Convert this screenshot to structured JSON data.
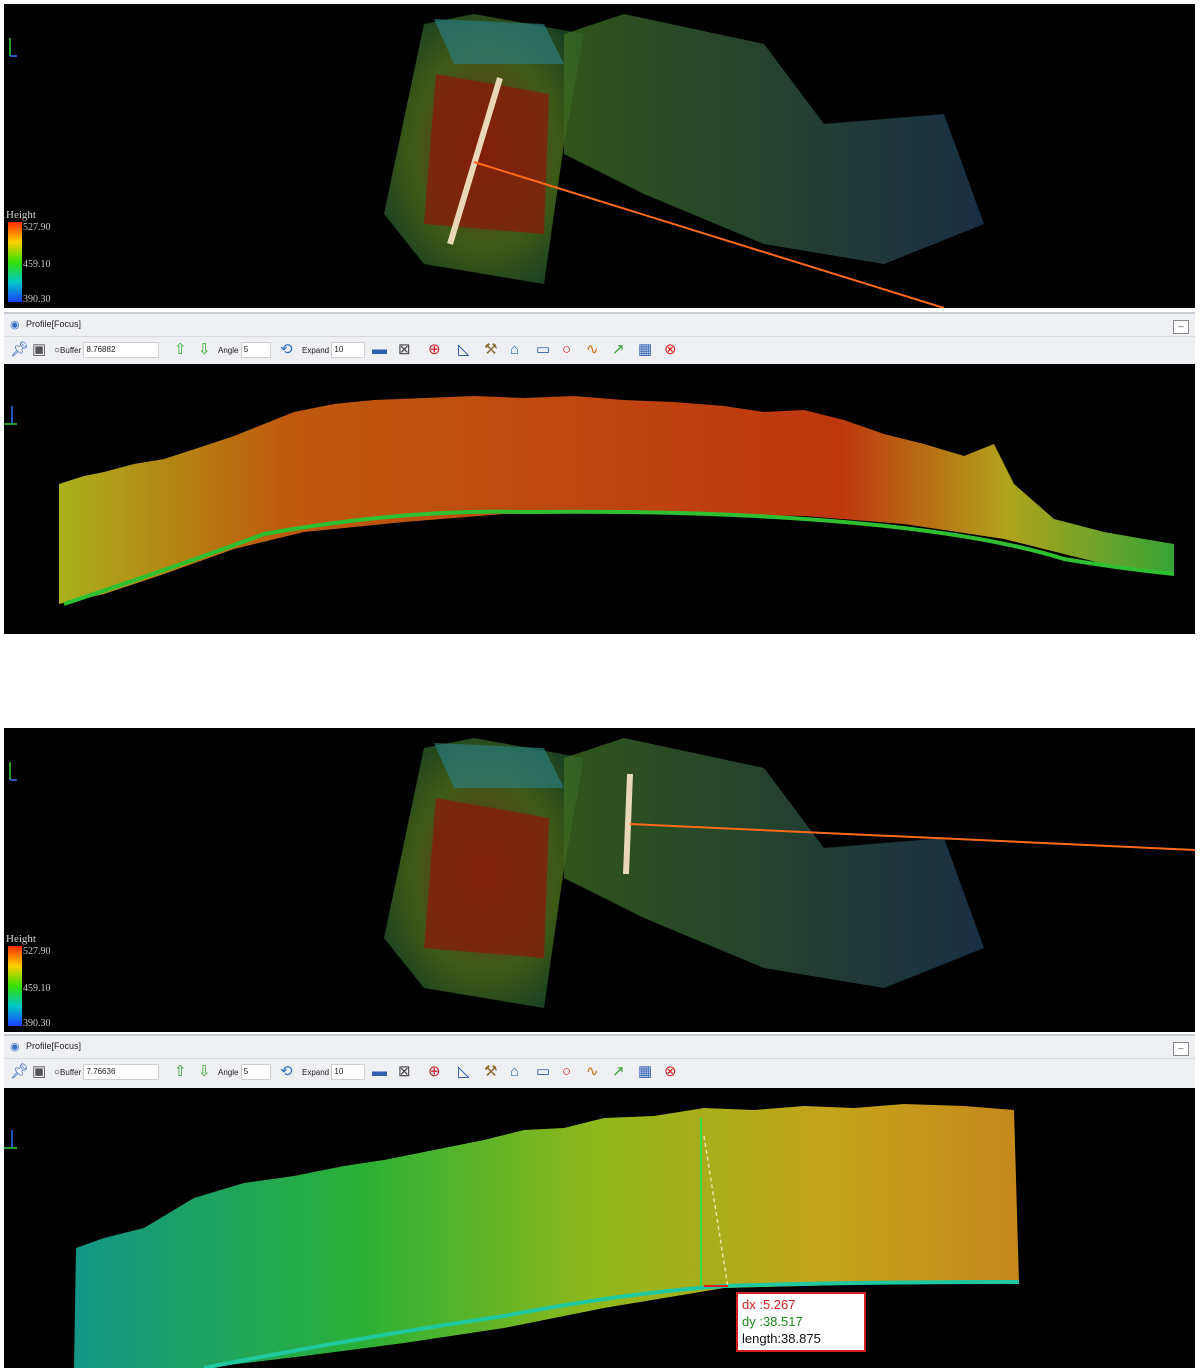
{
  "panels": [
    {
      "legend": {
        "title": "Height",
        "max": "527.90",
        "mid": "459.10",
        "min": "390.30"
      },
      "profile": {
        "title": "Profile[Focus]",
        "minimize": "–",
        "buffer_label": "Buffer",
        "buffer_value": "8.76882",
        "angle_label": "Angle",
        "angle_value": "5",
        "expand_label": "Expand",
        "expand_value": "10"
      }
    },
    {
      "legend": {
        "title": "Height",
        "max": "527.90",
        "mid": "459.10",
        "min": "390.30"
      },
      "profile": {
        "title": "Profile[Focus]",
        "minimize": "–",
        "buffer_label": "Buffer",
        "buffer_value": "7.76636",
        "angle_label": "Angle",
        "angle_value": "5",
        "expand_label": "Expand",
        "expand_value": "10"
      },
      "measurement": {
        "dx": "dx  :5.267",
        "dy": "dy  :38.517",
        "length": "length:38.875"
      }
    }
  ],
  "icons": [
    "pin-icon",
    "frame-icon",
    "radio-icon",
    "up-arrow-icon",
    "down-arrow-icon",
    "expand-icon",
    "ruler-icon",
    "grid-icon",
    "crosshair-icon",
    "angle-icon",
    "hammer-icon",
    "tree-icon",
    "rectangle-icon",
    "circle-icon",
    "profile-line-icon",
    "trend-icon",
    "chart-icon",
    "close-icon"
  ],
  "colors": {
    "background": "#000000",
    "toolbar": "#eef0f4",
    "accent_line": "#ff6a1a",
    "measure_border": "#d42020"
  }
}
